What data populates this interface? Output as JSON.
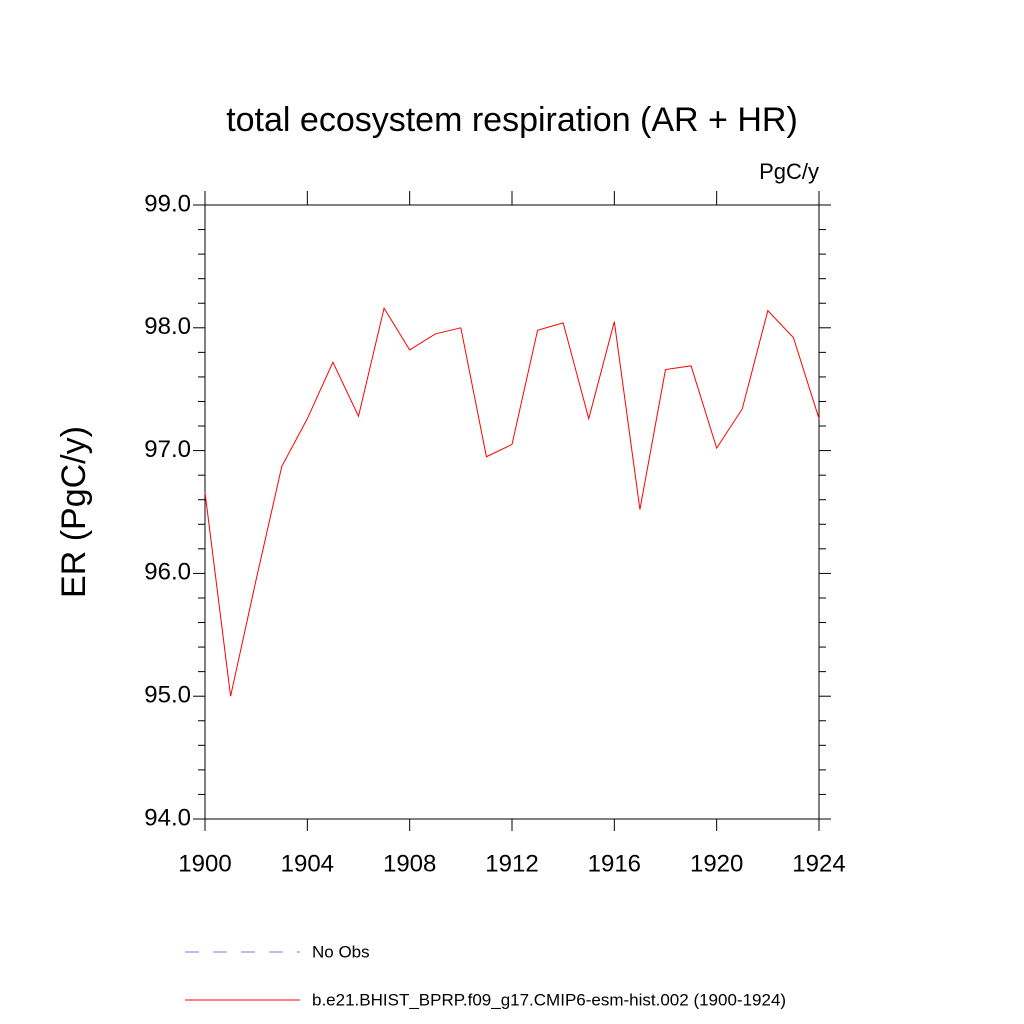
{
  "chart_data": {
    "type": "line",
    "title": "total ecosystem respiration (AR + HR)",
    "units": "PgC/y",
    "ylabel": "ER  (PgC/y)",
    "x": [
      1900,
      1901,
      1902,
      1903,
      1904,
      1905,
      1906,
      1907,
      1908,
      1909,
      1910,
      1911,
      1912,
      1913,
      1914,
      1915,
      1916,
      1917,
      1918,
      1919,
      1920,
      1921,
      1922,
      1923,
      1924
    ],
    "series": [
      {
        "name": "No Obs",
        "color": "#7b7bd0",
        "dashed": true,
        "values": [
          null,
          null,
          null,
          null,
          null,
          null,
          null,
          null,
          null,
          null,
          null,
          null,
          null,
          null,
          null,
          null,
          null,
          null,
          null,
          null,
          null,
          null,
          null,
          null,
          null
        ]
      },
      {
        "name": "b.e21.BHIST_BPRP.f09_g17.CMIP6-esm-hist.002 (1900-1924)",
        "color": "#ff0000",
        "dashed": false,
        "values": [
          96.66,
          95.0,
          95.95,
          96.87,
          97.26,
          97.72,
          97.28,
          98.16,
          97.82,
          97.95,
          98.0,
          96.95,
          97.05,
          97.98,
          98.04,
          97.26,
          98.05,
          96.52,
          97.66,
          97.69,
          97.02,
          97.34,
          98.14,
          97.92,
          97.26
        ]
      }
    ],
    "xlim": [
      1900,
      1924
    ],
    "xticks": [
      1900,
      1904,
      1908,
      1912,
      1916,
      1920,
      1924
    ],
    "ylim": [
      94,
      99
    ],
    "yticks": [
      {
        "value": 94,
        "label": "94.0"
      },
      {
        "value": 95,
        "label": "95.0"
      },
      {
        "value": 96,
        "label": "96.0"
      },
      {
        "value": 97,
        "label": "97.0"
      },
      {
        "value": 98,
        "label": "98.0"
      },
      {
        "value": 99,
        "label": "99.0"
      }
    ],
    "yminorticks": [
      94.2,
      94.4,
      94.6,
      94.8,
      95.2,
      95.4,
      95.6,
      95.8,
      96.2,
      96.4,
      96.6,
      96.8,
      97.2,
      97.4,
      97.6,
      97.8,
      98.2,
      98.4,
      98.6,
      98.8
    ],
    "grid": false
  }
}
